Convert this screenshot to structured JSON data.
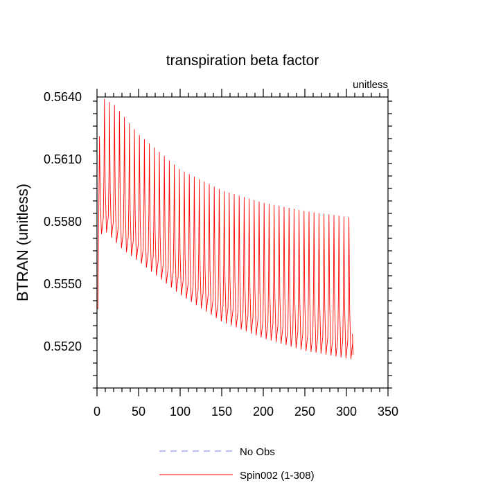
{
  "chart_data": {
    "type": "line",
    "title": "transpiration beta factor",
    "units_label": "unitless",
    "xlabel": "",
    "ylabel": "BTRAN  (unitless)",
    "xlim": [
      0,
      350
    ],
    "ylim": [
      0.55,
      0.564
    ],
    "x_ticks": [
      0,
      50,
      100,
      150,
      200,
      250,
      300,
      350
    ],
    "x_tick_labels": [
      "0",
      "50",
      "100",
      "150",
      "200",
      "250",
      "300",
      "350"
    ],
    "y_ticks": [
      0.564,
      0.561,
      0.558,
      0.555,
      0.552
    ],
    "y_tick_labels": [
      "0.5640",
      "0.5610",
      "0.5580",
      "0.5550",
      "0.5520"
    ],
    "grid": false,
    "legend_position": "bottom-center",
    "series": [
      {
        "name": "No Obs",
        "style": "dashed",
        "color": "#7777ee",
        "values": []
      },
      {
        "name": "Spin002 (1-308)",
        "style": "solid",
        "color": "#ff0000",
        "x_range": [
          1,
          308
        ],
        "cycle_length": 6,
        "peaks": [
          [
            3,
            0.5621
          ],
          [
            9,
            0.5639
          ],
          [
            21,
            0.5636
          ],
          [
            50,
            0.5622
          ],
          [
            100,
            0.5605
          ],
          [
            150,
            0.5595
          ],
          [
            200,
            0.5589
          ],
          [
            250,
            0.5585
          ],
          [
            305,
            0.5582
          ]
        ],
        "troughs": [
          [
            3,
            0.5573
          ],
          [
            9,
            0.5576
          ],
          [
            30,
            0.5567
          ],
          [
            50,
            0.5561
          ],
          [
            100,
            0.5545
          ],
          [
            150,
            0.5532
          ],
          [
            200,
            0.5524
          ],
          [
            250,
            0.5518
          ],
          [
            305,
            0.5514
          ]
        ],
        "start_value": 0.5538,
        "end_value": 0.5516
      }
    ]
  }
}
